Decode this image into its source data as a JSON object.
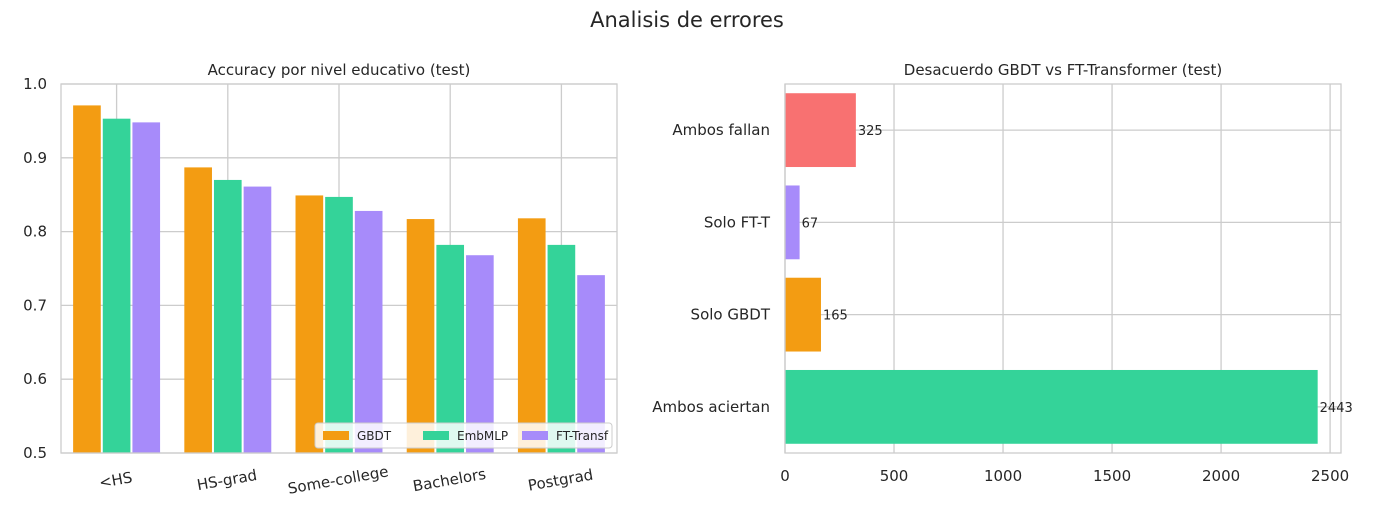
{
  "figure_title": "Analisis de errores",
  "colors": {
    "gbdt": "#f39c12",
    "embmlp": "#34d399",
    "fttransf": "#a78bfa",
    "ambos_fallan": "#f87171",
    "grid": "#cccccc",
    "spine": "#cccccc"
  },
  "chart_data": [
    {
      "type": "bar",
      "title": "Accuracy por nivel educativo (test)",
      "xlabel": "",
      "ylabel": "",
      "categories": [
        "<HS",
        "HS-grad",
        "Some-college",
        "Bachelors",
        "Postgrad"
      ],
      "series": [
        {
          "name": "GBDT",
          "color_key": "gbdt",
          "values": [
            0.971,
            0.887,
            0.849,
            0.817,
            0.818
          ]
        },
        {
          "name": "EmbMLP",
          "color_key": "embmlp",
          "values": [
            0.953,
            0.87,
            0.847,
            0.782,
            0.782
          ]
        },
        {
          "name": "FT-Transf",
          "color_key": "fttransf",
          "values": [
            0.948,
            0.861,
            0.828,
            0.768,
            0.741
          ]
        }
      ],
      "ylim": [
        0.5,
        1.0
      ],
      "yticks": [
        "0.5",
        "0.6",
        "0.7",
        "0.8",
        "0.9",
        "1.0"
      ],
      "grid": true,
      "legend": "lower-right"
    },
    {
      "type": "bar",
      "orientation": "horizontal",
      "title": "Desacuerdo GBDT vs FT-Transformer (test)",
      "xlabel": "",
      "ylabel": "",
      "categories": [
        "Ambos fallan",
        "Solo FT-T",
        "Solo GBDT",
        "Ambos aciertan"
      ],
      "values": [
        325,
        67,
        165,
        2443
      ],
      "value_labels": [
        "325",
        "67",
        "165",
        "2443"
      ],
      "color_keys": [
        "ambos_fallan",
        "fttransf",
        "gbdt",
        "embmlp"
      ],
      "xlim": [
        0,
        2550
      ],
      "xticks": [
        "0",
        "500",
        "1000",
        "1500",
        "2000",
        "2500"
      ],
      "grid": true
    }
  ]
}
